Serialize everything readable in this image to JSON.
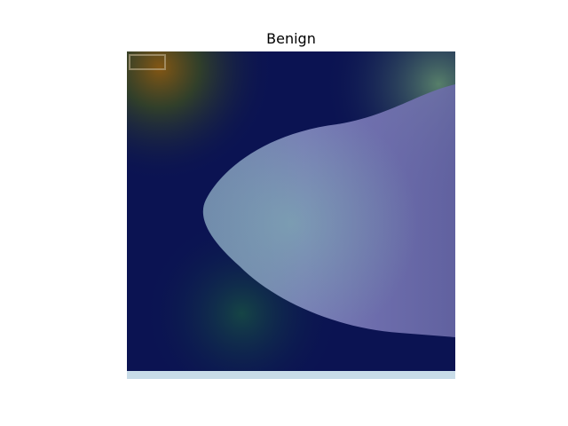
{
  "title": "Benign"
}
